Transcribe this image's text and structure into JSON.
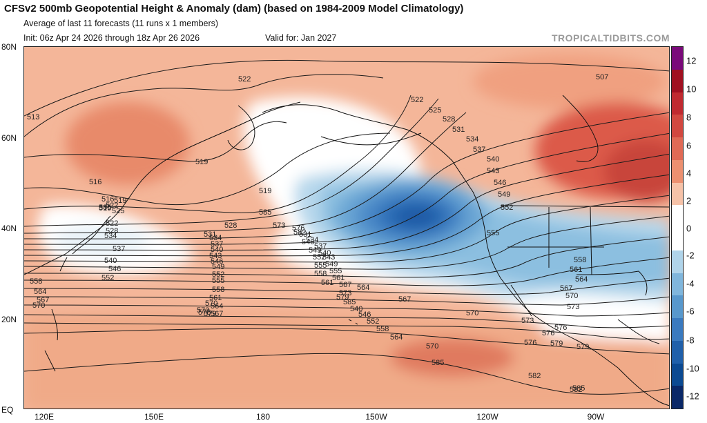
{
  "header": {
    "title": "CFSv2 500mb Geopotential Height & Anomaly (dam) (based on 1984-2009 Model Climatology)",
    "subtitle": "Average of last 11 forecasts (11 runs x 1 members)",
    "init": "Init: 06z Apr 24 2026 through 18z Apr 26 2026",
    "valid": "Valid for: Jan 2027",
    "credit": "TROPICALTIDBITS.COM"
  },
  "axes": {
    "lat_labels": [
      "80N",
      "60N",
      "40N",
      "20N",
      "EQ"
    ],
    "lon_labels": [
      "120E",
      "150E",
      "180",
      "150W",
      "120W",
      "90W"
    ]
  },
  "colorbar": {
    "labels": [
      "12",
      "10",
      "8",
      "6",
      "4",
      "2",
      "0",
      "-2",
      "-4",
      "-6",
      "-8",
      "-10",
      "-12"
    ],
    "colors": [
      "#7a0a7a",
      "#a01020",
      "#c02a30",
      "#d24840",
      "#e06a55",
      "#ec9070",
      "#f6c2a8",
      "#ffffff",
      "#ffffff",
      "#b0d4ea",
      "#80b6dc",
      "#5898cc",
      "#3a7abf",
      "#2060aa",
      "#0c4a92",
      "#0a2868"
    ]
  },
  "contour_labels": [
    "513",
    "516",
    "519",
    "519",
    "519",
    "522",
    "522",
    "525",
    "507",
    "522",
    "525",
    "528",
    "531",
    "534",
    "537",
    "540",
    "543",
    "546",
    "549",
    "552",
    "555",
    "558",
    "561",
    "564",
    "567",
    "570",
    "573",
    "576",
    "579",
    "582",
    "585",
    "585",
    "585",
    "528",
    "531",
    "534",
    "537",
    "540",
    "543",
    "546",
    "549",
    "552",
    "555",
    "558",
    "561",
    "564",
    "567",
    "570",
    "573",
    "576",
    "579",
    "582",
    "546",
    "549",
    "552",
    "555",
    "558",
    "561",
    "564",
    "567",
    "570",
    "573",
    "576",
    "579",
    "582",
    "585",
    "516",
    "519",
    "522",
    "528",
    "534",
    "537",
    "540",
    "546",
    "552",
    "558",
    "564",
    "567",
    "570",
    "573",
    "576",
    "531",
    "534",
    "537",
    "540",
    "543",
    "549",
    "555",
    "561",
    "567",
    "573",
    "579",
    "585",
    "540",
    "546",
    "552",
    "558",
    "564",
    "570",
    "576",
    "582",
    "564",
    "567"
  ]
}
